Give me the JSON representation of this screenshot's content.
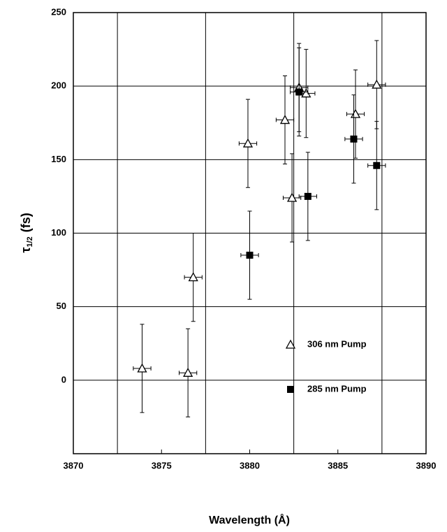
{
  "chart_data": {
    "type": "scatter",
    "x_label": "Wavelength (Å)",
    "y_label": {
      "symbol": "τ",
      "subscript": "1/2",
      "unit": "(fs)"
    },
    "xlim": [
      3870,
      3890
    ],
    "xticks": [
      3870,
      3875,
      3880,
      3885,
      3890
    ],
    "xgrid": [
      3872.5,
      3877.5,
      3882.5,
      3887.5
    ],
    "ylim": [
      -50,
      250
    ],
    "yticks": [
      0,
      50,
      100,
      150,
      200,
      250
    ],
    "grid": true,
    "series": [
      {
        "name": "306 nm Pump",
        "marker": "triangle",
        "color": "#000000",
        "x": [
          3873.9,
          3876.5,
          3876.8,
          3879.9,
          3882.0,
          3882.4,
          3882.8,
          3883.2,
          3886.0,
          3887.2
        ],
        "values": [
          8,
          5,
          70,
          161,
          177,
          124,
          199,
          195,
          181,
          201
        ],
        "xerr": [
          0.5,
          0.5,
          0.5,
          0.5,
          0.5,
          0.5,
          0.5,
          0.5,
          0.5,
          0.5
        ],
        "yerr": [
          30,
          30,
          30,
          30,
          30,
          30,
          30,
          30,
          30,
          30
        ]
      },
      {
        "name": "285 nm Pump",
        "marker": "square",
        "color": "#000000",
        "x": [
          3880.0,
          3883.3,
          3882.8,
          3885.9,
          3887.2
        ],
        "values": [
          85,
          125,
          196,
          164,
          146
        ],
        "xerr": [
          0.5,
          0.5,
          0.5,
          0.5,
          0.5
        ],
        "yerr": [
          30,
          30,
          30,
          30,
          30
        ]
      }
    ]
  }
}
